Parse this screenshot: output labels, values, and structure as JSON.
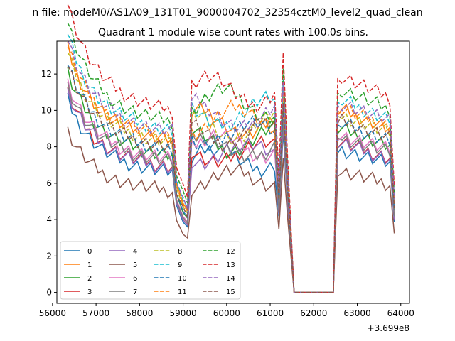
{
  "chart_data": {
    "type": "line",
    "suptitle": "n file: modeM0/AS1A09_131T01_9000004702_32354cztM0_level2_quad_clean",
    "title": "Quadrant 1 module wise count rates with 100.0s bins.",
    "xlabel": "",
    "ylabel": "",
    "x_offset_label": "+3.699e8",
    "xlim": [
      56100,
      64200
    ],
    "ylim": [
      -0.6,
      13.8
    ],
    "xticks": [
      56000,
      57000,
      58000,
      59000,
      60000,
      61000,
      62000,
      63000,
      64000
    ],
    "xtick_labels": [
      "56000",
      "57000",
      "58000",
      "59000",
      "60000",
      "61000",
      "62000",
      "63000",
      "64000"
    ],
    "yticks": [
      0,
      2,
      4,
      6,
      8,
      10,
      12
    ],
    "ytick_labels": [
      "0",
      "2",
      "4",
      "6",
      "8",
      "10",
      "12"
    ],
    "legend_position": "lower-left",
    "segments": [
      {
        "start": 56350,
        "end": 58900,
        "step": 100
      },
      {
        "start": 59000,
        "end": 61400,
        "step": 100
      },
      {
        "start": 61550,
        "end": 62450,
        "step": 100
      },
      {
        "start": 62550,
        "end": 63850,
        "step": 100
      }
    ],
    "series": [
      {
        "name": "0",
        "color": "#1f77b4",
        "dash": "solid",
        "level": 7.0
      },
      {
        "name": "1",
        "color": "#ff7f0e",
        "dash": "solid",
        "level": 8.9
      },
      {
        "name": "2",
        "color": "#2ca02c",
        "dash": "solid",
        "level": 8.0
      },
      {
        "name": "3",
        "color": "#d62728",
        "dash": "solid",
        "level": 7.3
      },
      {
        "name": "4",
        "color": "#9467bd",
        "dash": "solid",
        "level": 7.3
      },
      {
        "name": "5",
        "color": "#8c564b",
        "dash": "solid",
        "level": 5.9
      },
      {
        "name": "6",
        "color": "#e377c2",
        "dash": "solid",
        "level": 7.7
      },
      {
        "name": "7",
        "color": "#7f7f7f",
        "dash": "solid",
        "level": 7.6
      },
      {
        "name": "8",
        "color": "#bcbd22",
        "dash": "dashed",
        "level": 8.7
      },
      {
        "name": "9",
        "color": "#17becf",
        "dash": "dashed",
        "level": 9.4
      },
      {
        "name": "10",
        "color": "#1f77b4",
        "dash": "dashed",
        "level": 8.3
      },
      {
        "name": "11",
        "color": "#ff7f0e",
        "dash": "dashed",
        "level": 9.0
      },
      {
        "name": "12",
        "color": "#2ca02c",
        "dash": "dashed",
        "level": 9.9
      },
      {
        "name": "13",
        "color": "#d62728",
        "dash": "dashed",
        "level": 10.6
      },
      {
        "name": "14",
        "color": "#9467bd",
        "dash": "dashed",
        "level": 9.3
      },
      {
        "name": "15",
        "color": "#8c564b",
        "dash": "dashed",
        "level": 8.4
      }
    ]
  }
}
